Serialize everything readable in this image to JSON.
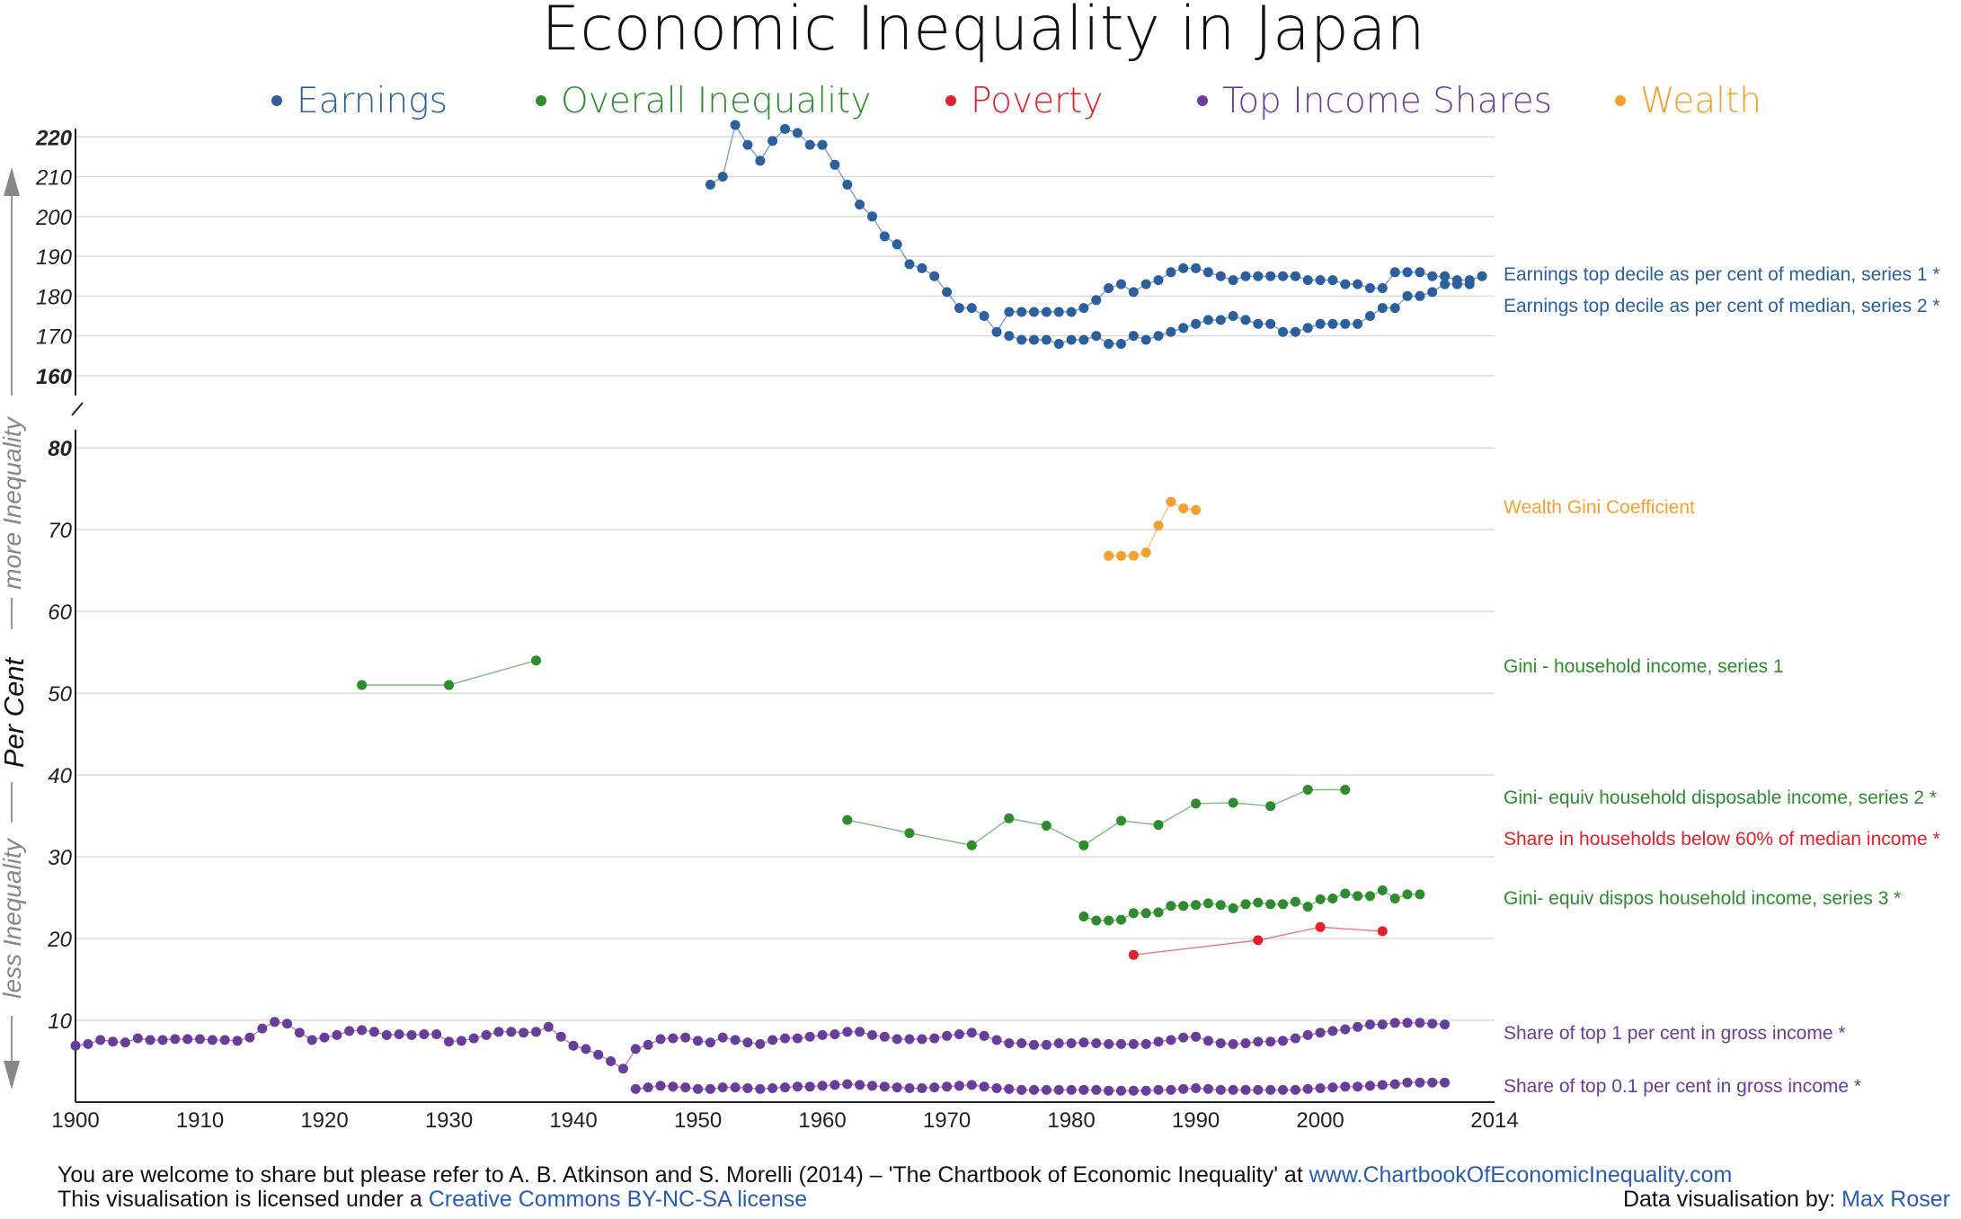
{
  "title": "Economic Inequality in Japan",
  "legend": [
    {
      "label": "Earnings",
      "color": "#2b5f9e"
    },
    {
      "label": "Overall Inequality",
      "color": "#2e8b2e"
    },
    {
      "label": "Poverty",
      "color": "#e0202a"
    },
    {
      "label": "Top Income Shares",
      "color": "#6a3d9a"
    },
    {
      "label": "Wealth",
      "color": "#f5a030"
    }
  ],
  "y_axis_title": "Per Cent",
  "side_labels": {
    "more": "more Inequality",
    "less": "less Inequality"
  },
  "footer": {
    "line1_text": "You are welcome to share but please refer to A. B. Atkinson and S. Morelli (2014) – 'The Chartbook of Economic Inequality' at ",
    "line1_link": "www.ChartbookOfEconomicInequality.com",
    "line2_text": "This visualisation is licensed under a ",
    "line2_link": "Creative Commons BY-NC-SA license",
    "credit_text": "Data visualisation by: ",
    "credit_link": "Max Roser"
  },
  "chart_data": {
    "type": "line",
    "title": "Economic Inequality in Japan",
    "ylabel": "Per Cent",
    "xlim": [
      1900,
      2014
    ],
    "x_ticks": [
      1900,
      1910,
      1920,
      1930,
      1940,
      1950,
      1960,
      1970,
      1980,
      1990,
      2000,
      2014
    ],
    "grid": true,
    "legend_position": "top",
    "panels": [
      {
        "name": "upper",
        "ylim": [
          155,
          223
        ],
        "y_ticks": [
          160,
          170,
          180,
          190,
          200,
          210,
          220
        ],
        "bold_ticks": [
          160,
          220
        ]
      },
      {
        "name": "lower",
        "ylim": [
          0,
          82
        ],
        "y_ticks": [
          10,
          20,
          30,
          40,
          50,
          60,
          70,
          80
        ],
        "bold_ticks": [
          80
        ]
      }
    ],
    "series": [
      {
        "name": "Earnings top decile as per cent of median, series 1 *",
        "panel": "upper",
        "color": "#2b5f9e",
        "x": [
          1951,
          1952,
          1953,
          1954,
          1955,
          1956,
          1957,
          1958,
          1959,
          1960,
          1961,
          1962,
          1963,
          1964,
          1965,
          1966,
          1967,
          1968,
          1969,
          1970,
          1971,
          1972,
          1973,
          1974,
          1975,
          1976,
          1977,
          1978,
          1979,
          1980,
          1981,
          1982,
          1983,
          1984,
          1985,
          1986,
          1987,
          1988,
          1989,
          1990,
          1991,
          1992,
          1993,
          1994,
          1995,
          1996,
          1997,
          1998,
          1999,
          2000,
          2001,
          2002,
          2003,
          2004,
          2005,
          2006,
          2007,
          2008,
          2009,
          2010,
          2011,
          2012,
          2013
        ],
        "y": [
          208,
          210,
          223,
          218,
          214,
          219,
          222,
          221,
          218,
          218,
          213,
          208,
          203,
          200,
          195,
          193,
          188,
          187,
          185,
          181,
          177,
          177,
          175,
          171,
          176,
          176,
          176,
          176,
          176,
          176,
          177,
          179,
          182,
          183,
          181,
          183,
          184,
          186,
          187,
          187,
          186,
          185,
          184,
          185,
          185,
          185,
          185,
          185,
          184,
          184,
          184,
          183,
          183,
          182,
          182,
          186,
          186,
          186,
          185,
          185,
          184,
          184,
          185
        ]
      },
      {
        "name": "Earnings top decile as per cent of median, series 2 *",
        "panel": "upper",
        "color": "#2b5f9e",
        "x": [
          1975,
          1976,
          1977,
          1978,
          1979,
          1980,
          1981,
          1982,
          1983,
          1984,
          1985,
          1986,
          1987,
          1988,
          1989,
          1990,
          1991,
          1992,
          1993,
          1994,
          1995,
          1996,
          1997,
          1998,
          1999,
          2000,
          2001,
          2002,
          2003,
          2004,
          2005,
          2006,
          2007,
          2008,
          2009,
          2010,
          2011,
          2012
        ],
        "y": [
          170,
          169,
          169,
          169,
          168,
          169,
          169,
          170,
          168,
          168,
          170,
          169,
          170,
          171,
          172,
          173,
          174,
          174,
          175,
          174,
          173,
          173,
          171,
          171,
          172,
          173,
          173,
          173,
          173,
          175,
          177,
          177,
          180,
          180,
          181,
          183,
          183,
          183
        ]
      },
      {
        "name": "Wealth Gini Coefficient",
        "panel": "lower",
        "color": "#f5a030",
        "x": [
          1983,
          1984,
          1985,
          1986,
          1987,
          1988,
          1989,
          1990
        ],
        "y": [
          66.8,
          66.8,
          66.8,
          67.2,
          70.5,
          73.4,
          72.6,
          72.4
        ]
      },
      {
        "name": "Gini - household income, series 1",
        "panel": "lower",
        "color": "#2e8b2e",
        "x": [
          1923,
          1930,
          1937
        ],
        "y": [
          51,
          51,
          54
        ]
      },
      {
        "name": "Gini- equiv household disposable income, series 2 *",
        "panel": "lower",
        "color": "#2e8b2e",
        "x": [
          1962,
          1967,
          1972,
          1975,
          1978,
          1981,
          1984,
          1987,
          1990,
          1993,
          1996,
          1999,
          2002
        ],
        "y": [
          34.5,
          32.9,
          31.4,
          34.7,
          33.8,
          31.4,
          34.4,
          33.9,
          36.5,
          36.6,
          36.2,
          38.2,
          38.2
        ]
      },
      {
        "name": "Share in households below 60% of median income *",
        "panel": "lower",
        "color": "#e0202a",
        "x": [
          1985,
          1995,
          2000,
          2005
        ],
        "y": [
          18,
          19.8,
          21.4,
          20.9
        ]
      },
      {
        "name": "Gini- equiv dispos household income, series 3 *",
        "panel": "lower",
        "color": "#2e8b2e",
        "x": [
          1981,
          1982,
          1983,
          1984,
          1985,
          1986,
          1987,
          1988,
          1989,
          1990,
          1991,
          1992,
          1993,
          1994,
          1995,
          1996,
          1997,
          1998,
          1999,
          2000,
          2001,
          2002,
          2003,
          2004,
          2005,
          2006,
          2007,
          2008
        ],
        "y": [
          22.7,
          22.2,
          22.2,
          22.3,
          23.1,
          23.1,
          23.2,
          24,
          24,
          24.1,
          24.3,
          24.1,
          23.7,
          24.2,
          24.4,
          24.2,
          24.2,
          24.5,
          23.9,
          24.8,
          24.9,
          25.5,
          25.2,
          25.2,
          25.9,
          24.9,
          25.4,
          25.4
        ]
      },
      {
        "name": "Share of top 1 per cent in gross income *",
        "panel": "lower",
        "color": "#6a3d9a",
        "x": [
          1900,
          1901,
          1902,
          1903,
          1904,
          1905,
          1906,
          1907,
          1908,
          1909,
          1910,
          1911,
          1912,
          1913,
          1914,
          1915,
          1916,
          1917,
          1918,
          1919,
          1920,
          1921,
          1922,
          1923,
          1924,
          1925,
          1926,
          1927,
          1928,
          1929,
          1930,
          1931,
          1932,
          1933,
          1934,
          1935,
          1936,
          1937,
          1938,
          1939,
          1940,
          1941,
          1942,
          1943,
          1944,
          1945,
          1946,
          1947,
          1948,
          1949,
          1950,
          1951,
          1952,
          1953,
          1954,
          1955,
          1956,
          1957,
          1958,
          1959,
          1960,
          1961,
          1962,
          1963,
          1964,
          1965,
          1966,
          1967,
          1968,
          1969,
          1970,
          1971,
          1972,
          1973,
          1974,
          1975,
          1976,
          1977,
          1978,
          1979,
          1980,
          1981,
          1982,
          1983,
          1984,
          1985,
          1986,
          1987,
          1988,
          1989,
          1990,
          1991,
          1992,
          1993,
          1994,
          1995,
          1996,
          1997,
          1998,
          1999,
          2000,
          2001,
          2002,
          2003,
          2004,
          2005,
          2006,
          2007,
          2008,
          2009,
          2010
        ],
        "y": [
          6.9,
          7.1,
          7.6,
          7.4,
          7.3,
          7.8,
          7.6,
          7.6,
          7.7,
          7.7,
          7.7,
          7.6,
          7.6,
          7.5,
          7.9,
          9,
          9.8,
          9.6,
          8.5,
          7.6,
          7.9,
          8.2,
          8.7,
          8.8,
          8.6,
          8.2,
          8.3,
          8.2,
          8.3,
          8.3,
          7.4,
          7.5,
          7.8,
          8.2,
          8.6,
          8.6,
          8.5,
          8.6,
          9.2,
          8,
          6.9,
          6.5,
          5.8,
          5,
          4.1,
          6.5,
          7,
          7.7,
          7.8,
          7.9,
          7.5,
          7.3,
          7.9,
          7.6,
          7.3,
          7.1,
          7.6,
          7.8,
          7.8,
          8,
          8.2,
          8.3,
          8.6,
          8.6,
          8.2,
          8,
          7.7,
          7.7,
          7.7,
          7.8,
          8.1,
          8.3,
          8.5,
          8.1,
          7.6,
          7.2,
          7.2,
          7,
          7,
          7.2,
          7.2,
          7.3,
          7.2,
          7.1,
          7.1,
          7.1,
          7.1,
          7.4,
          7.6,
          7.9,
          8,
          7.5,
          7.2,
          7.1,
          7.2,
          7.4,
          7.4,
          7.5,
          7.8,
          8.2,
          8.5,
          8.7,
          8.9,
          9.2,
          9.5,
          9.5,
          9.7,
          9.7,
          9.7,
          9.6,
          9.5
        ]
      },
      {
        "name": "Share of top 0.1 per cent in gross income *",
        "panel": "lower",
        "color": "#6a3d9a",
        "x": [
          1945,
          1946,
          1947,
          1948,
          1949,
          1950,
          1951,
          1952,
          1953,
          1954,
          1955,
          1956,
          1957,
          1958,
          1959,
          1960,
          1961,
          1962,
          1963,
          1964,
          1965,
          1966,
          1967,
          1968,
          1969,
          1970,
          1971,
          1972,
          1973,
          1974,
          1975,
          1976,
          1977,
          1978,
          1979,
          1980,
          1981,
          1982,
          1983,
          1984,
          1985,
          1986,
          1987,
          1988,
          1989,
          1990,
          1991,
          1992,
          1993,
          1994,
          1995,
          1996,
          1997,
          1998,
          1999,
          2000,
          2001,
          2002,
          2003,
          2004,
          2005,
          2006,
          2007,
          2008,
          2009,
          2010
        ],
        "y": [
          1.6,
          1.8,
          2,
          1.9,
          1.8,
          1.6,
          1.6,
          1.8,
          1.8,
          1.7,
          1.6,
          1.7,
          1.8,
          1.9,
          1.9,
          2,
          2.1,
          2.2,
          2.1,
          2,
          1.9,
          1.8,
          1.7,
          1.7,
          1.8,
          1.9,
          2,
          2.1,
          1.9,
          1.7,
          1.6,
          1.5,
          1.5,
          1.5,
          1.5,
          1.5,
          1.5,
          1.5,
          1.4,
          1.4,
          1.4,
          1.4,
          1.5,
          1.5,
          1.6,
          1.7,
          1.6,
          1.5,
          1.5,
          1.5,
          1.5,
          1.5,
          1.5,
          1.5,
          1.6,
          1.7,
          1.8,
          1.9,
          1.9,
          2,
          2.1,
          2.2,
          2.4,
          2.4,
          2.4,
          2.4
        ]
      }
    ]
  }
}
